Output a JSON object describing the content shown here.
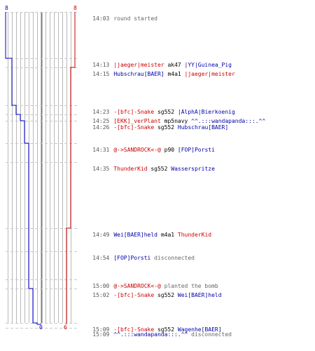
{
  "colors": {
    "blue": "#0000cc",
    "red": "#cc0000",
    "grid": "#b8b8b8",
    "dash": "#c8c8c8",
    "zero": "#777777",
    "time": "#555555",
    "text": "#666666"
  },
  "counts": {
    "blue_start": "8",
    "red_start": "8",
    "blue_end": "0",
    "red_end": "6"
  },
  "events": [
    {
      "time": "14:03",
      "message": "round started"
    },
    {
      "time": "14:13",
      "attacker": "|jaeger|meister",
      "attacker_team": "red",
      "weapon": "ak47",
      "victim": "|YY|Guinea_Pig",
      "victim_team": "blue"
    },
    {
      "time": "14:15",
      "attacker": "Hubschrau[BAER]",
      "attacker_team": "blue",
      "weapon": "m4a1",
      "victim": "|jaeger|meister",
      "victim_team": "red"
    },
    {
      "time": "14:23",
      "attacker": "-[bfc]-Snake",
      "attacker_team": "red",
      "weapon": "sg552",
      "victim": "|AlphA|Bierkoenig",
      "victim_team": "blue"
    },
    {
      "time": "14:25",
      "attacker": "[EKK]_verPlant",
      "attacker_team": "red",
      "weapon": "mp5navy",
      "victim": "^^.:::wandapanda:::.^^",
      "victim_team": "blue"
    },
    {
      "time": "14:26",
      "attacker": "-[bfc]-Snake",
      "attacker_team": "red",
      "weapon": "sg552",
      "victim": "Hubschrau[BAER]",
      "victim_team": "blue"
    },
    {
      "time": "14:31",
      "attacker": "@->SANDROCK<-@",
      "attacker_team": "red",
      "weapon": "p90",
      "victim": "[FOP]Porsti",
      "victim_team": "blue"
    },
    {
      "time": "14:35",
      "attacker": "ThunderKid",
      "attacker_team": "red",
      "weapon": "sg552",
      "victim": "Wasserspritze",
      "victim_team": "blue"
    },
    {
      "time": "14:49",
      "attacker": "Wei[BAER]held",
      "attacker_team": "blue",
      "weapon": "m4a1",
      "victim": "ThunderKid",
      "victim_team": "red"
    },
    {
      "time": "14:54",
      "player": "[FOP]Porsti",
      "player_team": "blue",
      "message": "disconnected"
    },
    {
      "time": "15:00",
      "player": "@->SANDROCK<-@",
      "player_team": "red",
      "message": "planted the bomb"
    },
    {
      "time": "15:02",
      "attacker": "-[bfc]-Snake",
      "attacker_team": "red",
      "weapon": "sg552",
      "victim": "Wei[BAER]held",
      "victim_team": "blue"
    },
    {
      "time": "15:09",
      "attacker": "-[bfc]-Snake",
      "attacker_team": "red",
      "weapon": "sg552",
      "victim": "Wagenhe[BAER]",
      "victim_team": "blue"
    },
    {
      "time": "15:09",
      "player": "^^.:::wandapanda:::.^^",
      "player_team": "blue",
      "message": "disconnected"
    }
  ]
}
